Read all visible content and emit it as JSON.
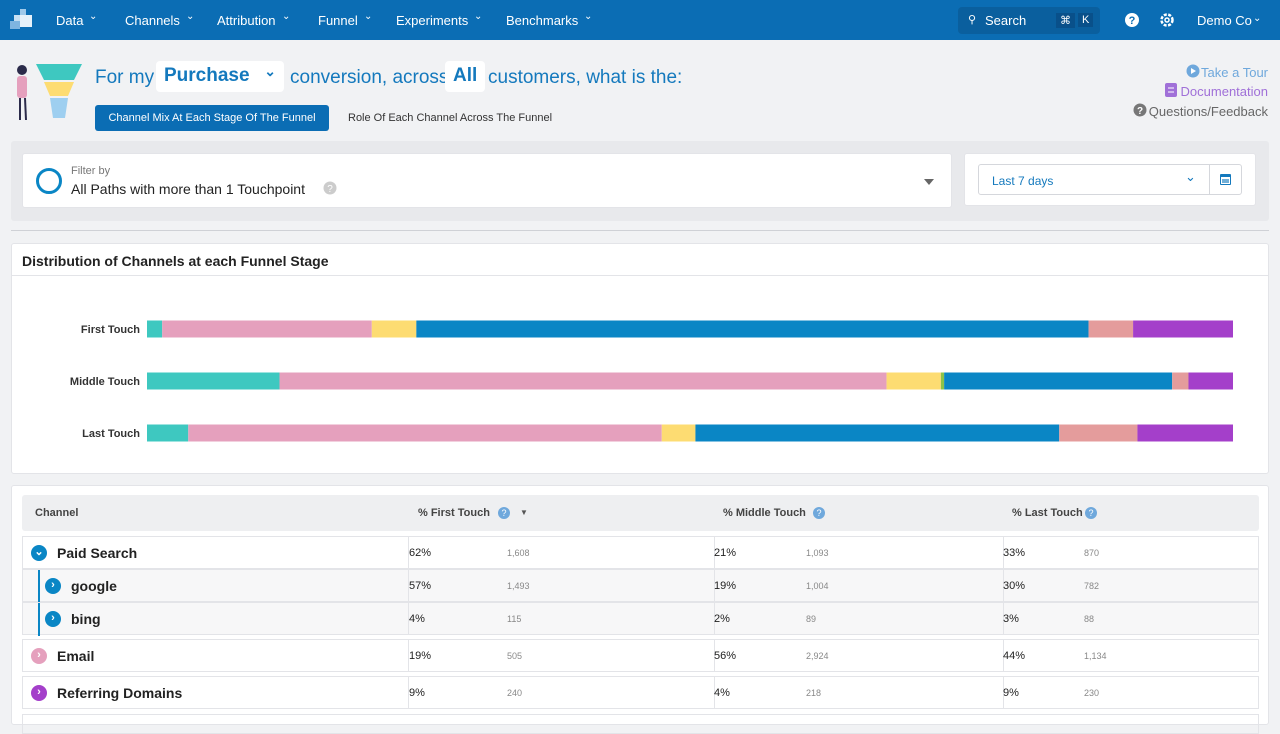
{
  "nav": {
    "items": [
      "Data",
      "Channels",
      "Attribution",
      "Funnel",
      "Experiments",
      "Benchmarks"
    ],
    "search": "Search",
    "shortcut": [
      "⌘",
      "K"
    ],
    "account": "Demo Co"
  },
  "header": {
    "prefix": "For my",
    "event": "Purchase",
    "middle": "conversion, across",
    "segment": "All",
    "suffix": "customers, what is the:",
    "tabs": [
      "Channel Mix At Each Stage Of The Funnel",
      "Role Of Each Channel Across The Funnel"
    ],
    "links": [
      "Take a Tour",
      "Documentation",
      "Questions/Feedback"
    ]
  },
  "filter": {
    "label": "Filter by",
    "value": "All Paths with more than 1 Touchpoint",
    "date": "Last 7 days"
  },
  "chart_data": {
    "type": "stacked-bar",
    "orientation": "horizontal",
    "title": "Distribution of Channels at each Funnel Stage",
    "categories": [
      "First Touch",
      "Middle Touch",
      "Last Touch"
    ],
    "xlim": [
      0,
      100
    ],
    "series": [
      {
        "color": "#3ec8c0",
        "values": [
          1.4,
          12.2,
          3.8
        ]
      },
      {
        "color": "#e5a0bd",
        "values": [
          19.3,
          55.9,
          43.6
        ]
      },
      {
        "color": "#fddc72",
        "values": [
          4.1,
          5.0,
          3.1
        ]
      },
      {
        "color": "#8bc34a",
        "values": [
          0,
          0.3,
          0
        ]
      },
      {
        "color": "#0a86c5",
        "values": [
          61.9,
          21.0,
          33.5
        ]
      },
      {
        "color": "#e49c9c",
        "values": [
          4.1,
          1.5,
          7.2
        ]
      },
      {
        "color": "#a43fca",
        "values": [
          9.2,
          4.1,
          8.8
        ]
      }
    ]
  },
  "table": {
    "columns": [
      "Channel",
      "% First Touch",
      "% Middle Touch",
      "% Last Touch"
    ],
    "rows": [
      {
        "channel": "Paid Search",
        "level": 0,
        "color": "#0a86c5",
        "expanded": true,
        "cells": [
          "62%",
          "1,608",
          "21%",
          "1,093",
          "33%",
          "870"
        ]
      },
      {
        "channel": "google",
        "level": 1,
        "color": "#0a86c5",
        "expanded": false,
        "cells": [
          "57%",
          "1,493",
          "19%",
          "1,004",
          "30%",
          "782"
        ]
      },
      {
        "channel": "bing",
        "level": 1,
        "color": "#0a86c5",
        "expanded": false,
        "cells": [
          "4%",
          "115",
          "2%",
          "89",
          "3%",
          "88"
        ]
      },
      {
        "channel": "Email",
        "level": 0,
        "color": "#e5a0bd",
        "expanded": false,
        "cells": [
          "19%",
          "505",
          "56%",
          "2,924",
          "44%",
          "1,134"
        ]
      },
      {
        "channel": "Referring Domains",
        "level": 0,
        "color": "#a43fca",
        "expanded": false,
        "cells": [
          "9%",
          "240",
          "4%",
          "218",
          "9%",
          "230"
        ]
      }
    ]
  }
}
